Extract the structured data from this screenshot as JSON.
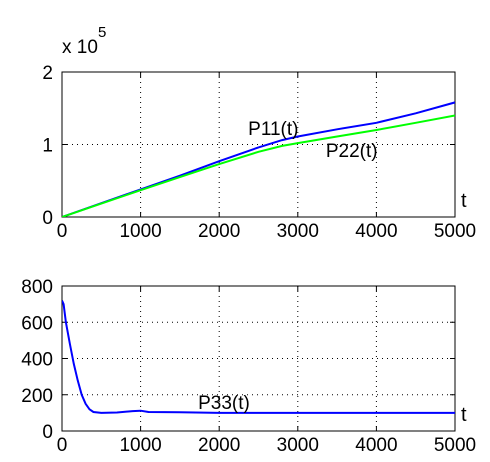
{
  "chart_data": [
    {
      "type": "line",
      "title": "",
      "xlabel": "t",
      "ylabel": "",
      "y_multiplier_label": "x 10",
      "y_multiplier_exponent": "5",
      "xlim": [
        0,
        5000
      ],
      "ylim": [
        0,
        200000
      ],
      "xticks": [
        0,
        1000,
        2000,
        3000,
        4000,
        5000
      ],
      "xtick_labels": [
        "0",
        "1000",
        "2000",
        "3000",
        "4000",
        "5000"
      ],
      "yticks": [
        0,
        100000,
        200000
      ],
      "ytick_labels": [
        "0",
        "1",
        "2"
      ],
      "grid": true,
      "series": [
        {
          "name": "P11(t)",
          "color": "#0000ff",
          "x": [
            0,
            500,
            1000,
            1500,
            2000,
            2500,
            2800,
            3000,
            3500,
            4000,
            4500,
            5000
          ],
          "y": [
            0,
            19000,
            38000,
            57000,
            77000,
            96000,
            106000,
            111000,
            121000,
            130000,
            143000,
            158000
          ]
        },
        {
          "name": "P22(t)",
          "color": "#00ff00",
          "x": [
            0,
            500,
            1000,
            1500,
            2000,
            2500,
            2800,
            3000,
            3500,
            4000,
            4500,
            5000
          ],
          "y": [
            0,
            18500,
            37000,
            55000,
            73000,
            90000,
            98000,
            102000,
            111000,
            120000,
            130000,
            140000
          ]
        }
      ]
    },
    {
      "type": "line",
      "title": "",
      "xlabel": "t",
      "ylabel": "",
      "xlim": [
        0,
        5000
      ],
      "ylim": [
        0,
        800
      ],
      "xticks": [
        0,
        1000,
        2000,
        3000,
        4000,
        5000
      ],
      "xtick_labels": [
        "0",
        "1000",
        "2000",
        "3000",
        "4000",
        "5000"
      ],
      "yticks": [
        0,
        200,
        400,
        600,
        800
      ],
      "ytick_labels": [
        "0",
        "200",
        "400",
        "600",
        "800"
      ],
      "grid": true,
      "series": [
        {
          "name": "P33(t)",
          "color": "#0000ff",
          "x": [
            0,
            20,
            50,
            100,
            150,
            200,
            250,
            300,
            350,
            400,
            500,
            700,
            900,
            1000,
            1100,
            1500,
            2000,
            3000,
            4000,
            5000
          ],
          "y": [
            720,
            700,
            600,
            480,
            370,
            280,
            200,
            150,
            120,
            105,
            100,
            102,
            110,
            112,
            105,
            103,
            100,
            100,
            100,
            100
          ]
        }
      ]
    }
  ]
}
